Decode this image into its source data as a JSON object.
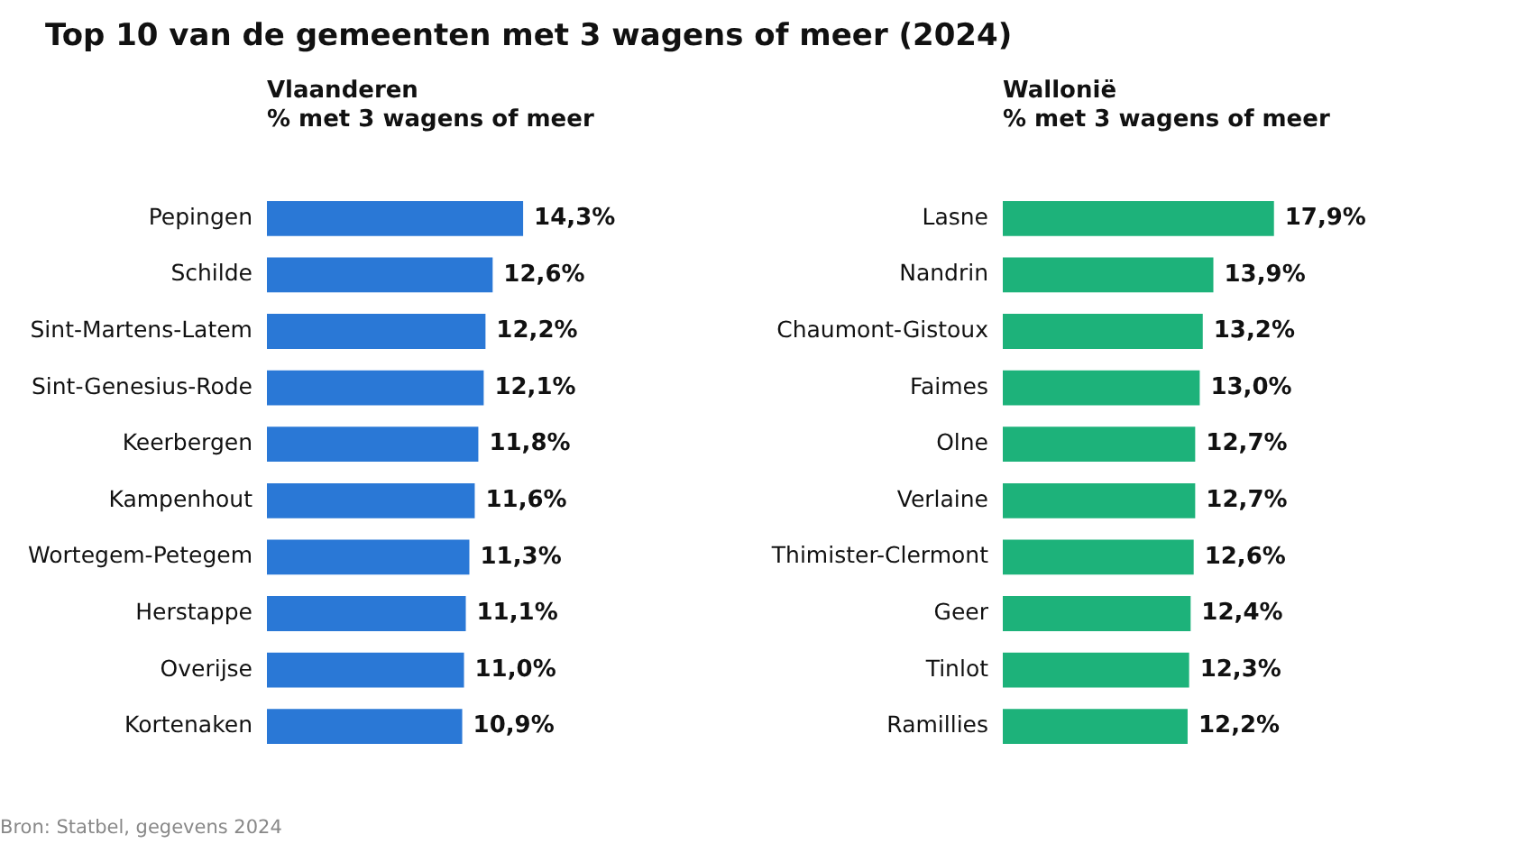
{
  "chart_data": [
    {
      "type": "bar",
      "orientation": "horizontal",
      "title": "Top 10 van de gemeenten met 3 wagens of meer (2024)",
      "subtitle": "Vlaanderen",
      "xlabel": "% met 3 wagens of meer",
      "categories": [
        "Pepingen",
        "Schilde",
        "Sint-Martens-Latem",
        "Sint-Genesius-Rode",
        "Keerbergen",
        "Kampenhout",
        "Wortegem-Petegem",
        "Herstappe",
        "Overijse",
        "Kortenaken"
      ],
      "values": [
        14.3,
        12.6,
        12.2,
        12.1,
        11.8,
        11.6,
        11.3,
        11.1,
        11.0,
        10.9
      ],
      "value_labels": [
        "14,3%",
        "12,6%",
        "12,2%",
        "12,1%",
        "11,8%",
        "11,6%",
        "11,3%",
        "11,1%",
        "11,0%",
        "10,9%"
      ],
      "color": "#2a78d6",
      "tick_labels": "y",
      "annotations": [
        "Bron: Statbel, gegevens 2024"
      ]
    },
    {
      "type": "bar",
      "orientation": "horizontal",
      "subtitle": "Wallonië",
      "xlabel": "% met 3 wagens of meer",
      "categories": [
        "Lasne",
        "Nandrin",
        "Chaumont-Gistoux",
        "Faimes",
        "Olne",
        "Verlaine",
        "Thimister-Clermont",
        "Geer",
        "Tinlot",
        "Ramillies"
      ],
      "values": [
        17.9,
        13.9,
        13.2,
        13.0,
        12.7,
        12.7,
        12.6,
        12.4,
        12.3,
        12.2
      ],
      "value_labels": [
        "17,9%",
        "13,9%",
        "13,2%",
        "13,0%",
        "12,7%",
        "12,7%",
        "12,6%",
        "12,4%",
        "12,3%",
        "12,2%"
      ],
      "color": "#1db27a",
      "tick_labels": "y"
    }
  ]
}
